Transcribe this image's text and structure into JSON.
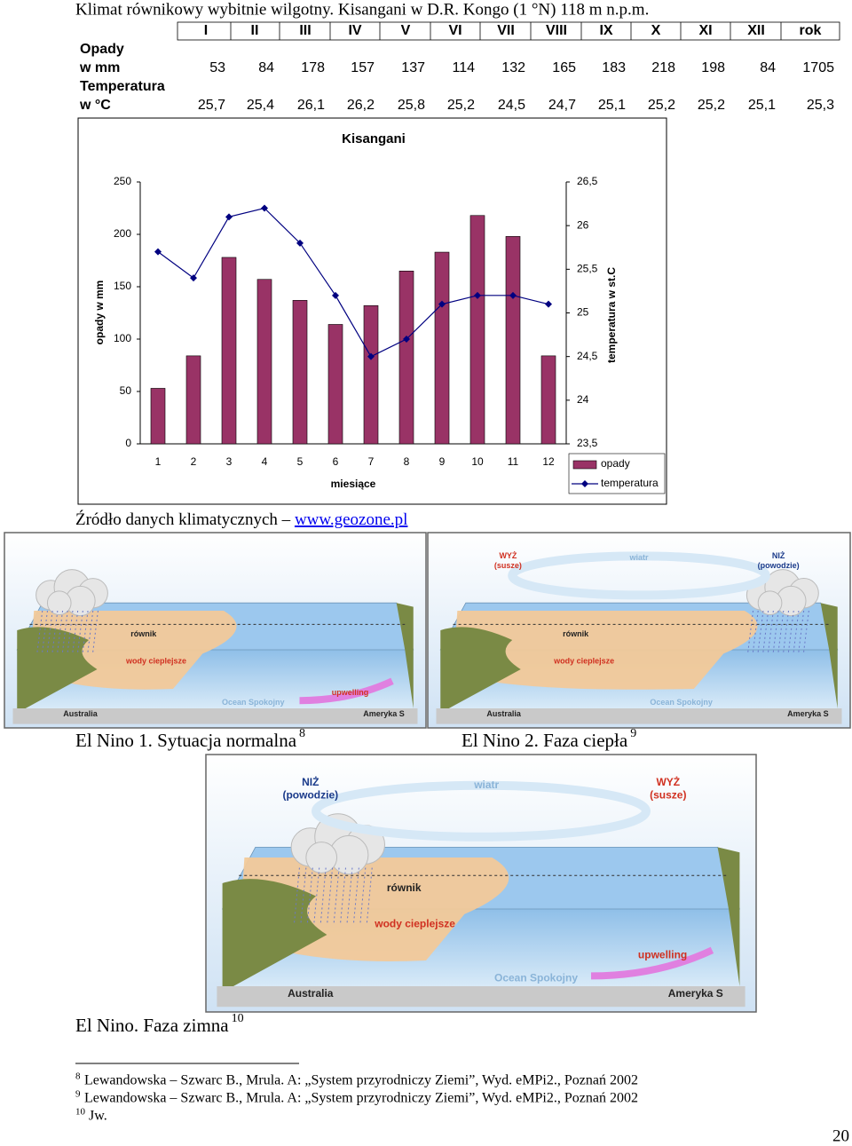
{
  "header": {
    "title": "Klimat równikowy wybitnie wilgotny. Kisangani w D.R. Kongo (1 °N) 118 m n.p.m."
  },
  "table": {
    "columns": [
      "I",
      "II",
      "III",
      "IV",
      "V",
      "VI",
      "VII",
      "VIII",
      "IX",
      "X",
      "XI",
      "XII",
      "rok"
    ],
    "rows": [
      {
        "label": [
          "Opady",
          "w mm"
        ],
        "cells": [
          53,
          84,
          178,
          157,
          137,
          114,
          132,
          165,
          183,
          218,
          198,
          84,
          1705
        ]
      },
      {
        "label": [
          "Temperatura",
          "w °C"
        ],
        "cells": [
          "25,7",
          "25,4",
          "26,1",
          "26,2",
          "25,8",
          "25,2",
          "24,5",
          "24,7",
          "25,1",
          "25,2",
          "25,2",
          "25,1",
          "25,3"
        ]
      }
    ]
  },
  "chart_data": {
    "type": "bar",
    "title": "Kisangani",
    "x_label": "miesiące",
    "y_label": "opady w mm",
    "y2_label": "temperatura w st.C",
    "categories": [
      1,
      2,
      3,
      4,
      5,
      6,
      7,
      8,
      9,
      10,
      11,
      12
    ],
    "series": [
      {
        "name": "opady",
        "type": "bar",
        "color": "#993366",
        "values": [
          53,
          84,
          178,
          157,
          137,
          114,
          132,
          165,
          183,
          218,
          198,
          84
        ]
      },
      {
        "name": "temperatura",
        "type": "line",
        "axis": "y2",
        "color": "#000080",
        "values": [
          25.7,
          25.4,
          26.1,
          26.2,
          25.8,
          25.2,
          24.5,
          24.7,
          25.1,
          25.2,
          25.2,
          25.1
        ]
      }
    ],
    "ylim": [
      0,
      250
    ],
    "yticks": [
      0,
      50,
      100,
      150,
      200,
      250
    ],
    "y2lim": [
      23.5,
      26.5
    ],
    "y2ticks": [
      {
        "value": 23.5,
        "label": "23,5"
      },
      24,
      {
        "value": 24.5,
        "label": "24,5"
      },
      25,
      {
        "value": 25.5,
        "label": "25,5"
      },
      26,
      {
        "value": 26.5,
        "label": "26,5"
      }
    ],
    "legend": "bottom-right",
    "grid": false
  },
  "source": {
    "text": "Źródło danych klimatycznych – ",
    "link": "www.geozone.pl"
  },
  "figures": [
    {
      "caption": "El Nino 1. Sytuacja normalna",
      "note": "8",
      "labels": [
        "równik",
        "wody cieplejsze",
        "Ocean Spokojny",
        "upwelling",
        "Australia",
        "Ameryka S"
      ]
    },
    {
      "caption": "El Nino 2. Faza ciepła",
      "note": "9",
      "labels": [
        "WYŻ",
        "(susze)",
        "NIŻ",
        "(powodzie)",
        "wiatr",
        "równik",
        "wody cieplejsze",
        "Ocean Spokojny",
        "Australia",
        "Ameryka S"
      ]
    },
    {
      "caption": "El Nino. Faza zimna",
      "note": "10",
      "labels": [
        "NIŻ",
        "(powodzie)",
        "WYŻ",
        "(susze)",
        "wiatr",
        "równik",
        "wody cieplejsze",
        "Ocean Spokojny",
        "upwelling",
        "Australia",
        "Ameryka S"
      ]
    }
  ],
  "footnotes": [
    {
      "mark": "8",
      "text": "Lewandowska – Szwarc B., Mrula. A: „System przyrodniczy Ziemi”, Wyd. eMPi2., Poznań 2002"
    },
    {
      "mark": "9",
      "text": "Lewandowska – Szwarc B., Mrula. A: „System przyrodniczy Ziemi”, Wyd. eMPi2., Poznań 2002"
    },
    {
      "mark": "10",
      "text": "Jw."
    }
  ],
  "page_number": "20"
}
